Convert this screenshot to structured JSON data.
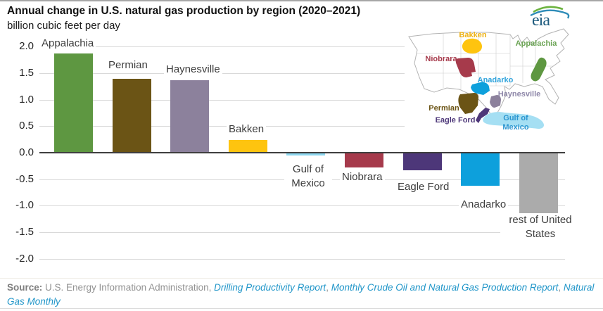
{
  "page": {
    "title": "Annual change in U.S. natural gas production by region (2020–2021)",
    "subtitle": "billion cubic feet per day"
  },
  "logo": {
    "text": "eia",
    "text_color": "#1e5b7e",
    "arc_green": "#6cb33f",
    "arc_blue": "#2e8cb8"
  },
  "chart_data": {
    "type": "bar",
    "title": "Annual change in U.S. natural gas production by region (2020–2021)",
    "ylabel": "billion cubic feet per day",
    "categories": [
      "Appalachia",
      "Permian",
      "Haynesville",
      "Bakken",
      "Gulf of Mexico",
      "Niobrara",
      "Eagle Ford",
      "Anadarko",
      "rest of United States"
    ],
    "values": [
      1.87,
      1.39,
      1.37,
      0.24,
      -0.05,
      -0.28,
      -0.33,
      -0.62,
      -1.14
    ],
    "colors": [
      "#5e9741",
      "#6b5415",
      "#8c819c",
      "#fec40f",
      "#8ed8f0",
      "#a63a4b",
      "#4d3779",
      "#0da0dc",
      "#ababab"
    ],
    "yticks": [
      2.0,
      1.5,
      1.0,
      0.5,
      0.0,
      -0.5,
      -1.0,
      -1.5,
      -2.0
    ],
    "ylim": [
      -2.0,
      2.0
    ],
    "grid": true,
    "legend": "none",
    "gridline_color": "#d9d9d9",
    "zero_line_color": "#3f3f3f"
  },
  "map": {
    "regions": [
      {
        "label": "Bakken",
        "color": "#fec40f",
        "label_color": "#eeb111"
      },
      {
        "label": "Appalachia",
        "color": "#5e9741",
        "label_color": "#6aa353"
      },
      {
        "label": "Niobrara",
        "color": "#a63a4b",
        "label_color": "#a63a4b"
      },
      {
        "label": "Anadarko",
        "color": "#0da0dc",
        "label_color": "#2fa3dc"
      },
      {
        "label": "Haynesville",
        "color": "#8c819c",
        "label_color": "#8d86a8"
      },
      {
        "label": "Permian",
        "color": "#6b5415",
        "label_color": "#6b5415"
      },
      {
        "label": "Eagle Ford",
        "color": "#4d3779",
        "label_color": "#4d3779"
      },
      {
        "label": "Gulf of Mexico",
        "color": "#a5dff3",
        "label_color": "#2a95d0",
        "lines": [
          "Gulf of",
          "Mexico"
        ]
      }
    ]
  },
  "source": {
    "segments": [
      {
        "text": "Source:",
        "style": "bold"
      },
      {
        "text": " U.S. Energy Information Administration, ",
        "style": "plain"
      },
      {
        "text": "Drilling Productivity Report",
        "style": "link"
      },
      {
        "text": ", ",
        "style": "plain"
      },
      {
        "text": "Monthly Crude Oil and Natural Gas Production Report",
        "style": "link"
      },
      {
        "text": ", ",
        "style": "plain"
      },
      {
        "text": "Natural Gas Monthly",
        "style": "link"
      }
    ]
  }
}
